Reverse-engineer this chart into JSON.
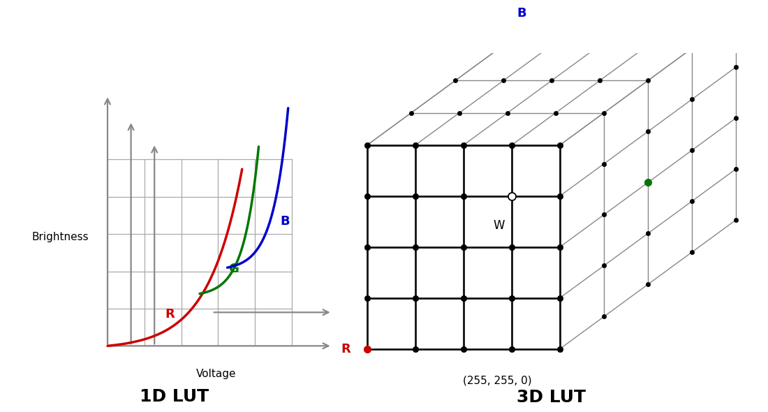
{
  "background_color": "#ffffff",
  "title_1d": "1D LUT",
  "title_3d": "3D LUT",
  "title_fontsize": 18,
  "brightness_label": "Brightness",
  "voltage_label": "Voltage",
  "curve_R_color": "#cc0000",
  "curve_G_color": "#007700",
  "curve_B_color": "#0000cc",
  "grid_color": "#aaaaaa",
  "axis_color": "#888888",
  "label_B_color": "#0000cc",
  "label_G_color": "#007700",
  "label_R_color": "#cc0000"
}
